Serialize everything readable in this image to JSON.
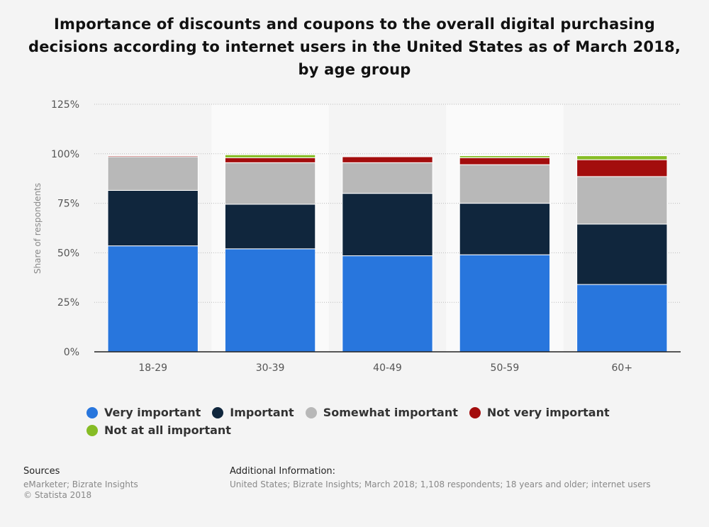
{
  "chart_data": {
    "type": "bar",
    "stacked": true,
    "title": "Importance of discounts and coupons to the overall digital purchasing decisions according to internet users in the United States as of March 2018, by age group",
    "ylabel": "Share of respondents",
    "categories": [
      "18-29",
      "30-39",
      "40-49",
      "50-59",
      "60+"
    ],
    "ylim": [
      0,
      125
    ],
    "yticks": [
      "0%",
      "25%",
      "50%",
      "75%",
      "100%",
      "125%"
    ],
    "ytick_values": [
      0,
      25,
      50,
      75,
      100,
      125
    ],
    "grid": true,
    "legend_position": "bottom-left",
    "series": [
      {
        "name": "Very important",
        "color": "#2876dd",
        "values": [
          53.5,
          52,
          48.5,
          49,
          34
        ]
      },
      {
        "name": "Important",
        "color": "#10263d",
        "values": [
          28,
          22.5,
          31.5,
          26,
          30.5
        ]
      },
      {
        "name": "Somewhat important",
        "color": "#b8b8b8",
        "values": [
          17,
          21,
          15.5,
          19.5,
          24
        ]
      },
      {
        "name": "Not very important",
        "color": "#a30d0d",
        "values": [
          0.5,
          2.5,
          3,
          3.5,
          8.5
        ]
      },
      {
        "name": "Not at all important",
        "color": "#86bc25",
        "values": [
          0,
          1.5,
          0,
          1,
          2
        ]
      }
    ]
  },
  "footer": {
    "sources_heading": "Sources",
    "sources_line1": "eMarketer; Bizrate Insights",
    "sources_line2": "© Statista 2018",
    "additional_heading": "Additional Information:",
    "additional_text": "United States; Bizrate Insights; March 2018; 1,108 respondents; 18 years and older; internet users"
  }
}
